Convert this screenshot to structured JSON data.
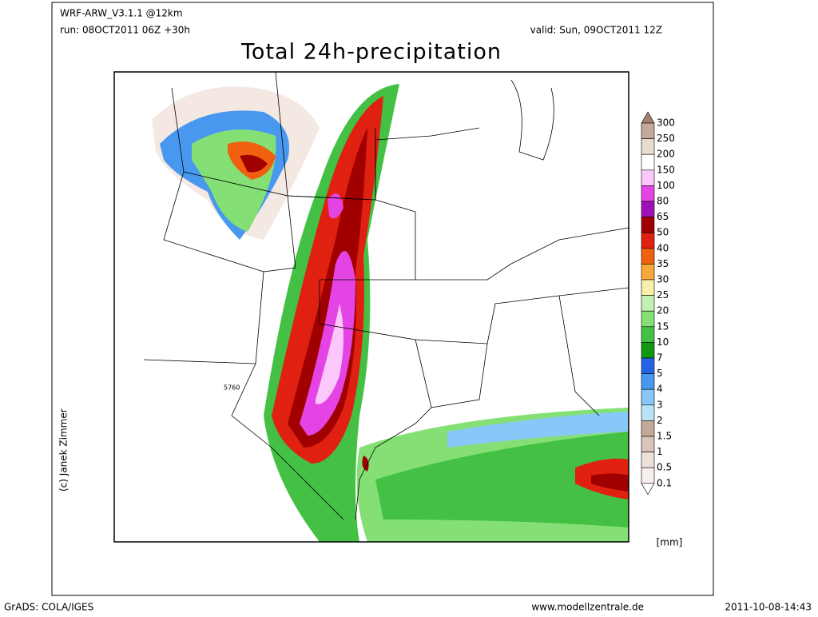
{
  "header": {
    "model": "WRF-ARW_V3.1.1 @12km",
    "run": "run: 08OCT2011 06Z +30h",
    "valid": "valid: Sun, 09OCT2011 12Z",
    "title": "Total 24h-precipitation"
  },
  "map": {
    "credit": "(c) Janek Zimmer",
    "contour_label": "5760"
  },
  "colorbar": {
    "labels": [
      "300",
      "250",
      "200",
      "150",
      "100",
      "80",
      "65",
      "50",
      "40",
      "35",
      "30",
      "25",
      "20",
      "15",
      "10",
      "7",
      "5",
      "4",
      "3",
      "2",
      "1.5",
      "1",
      "0.5",
      "0.1"
    ],
    "colors": [
      "#a88070",
      "#c4a898",
      "#e8dcd0",
      "#ffffff",
      "#fcc8fc",
      "#e444e4",
      "#a010b8",
      "#a00000",
      "#e02010",
      "#f06010",
      "#f8a838",
      "#f8f0a8",
      "#c4f0b4",
      "#84e074",
      "#44c044",
      "#109810",
      "#2464e4",
      "#4898f0",
      "#88c8f8",
      "#b8e4f8",
      "#c4a898",
      "#d8c4b8",
      "#ece0d8",
      "#f8f0ec",
      "#ffffff"
    ],
    "unit": "[mm]"
  },
  "footer": {
    "software": "GrADS: COLA/IGES",
    "website": "www.modellzentrale.de",
    "timestamp": "2011-10-08-14:43"
  }
}
